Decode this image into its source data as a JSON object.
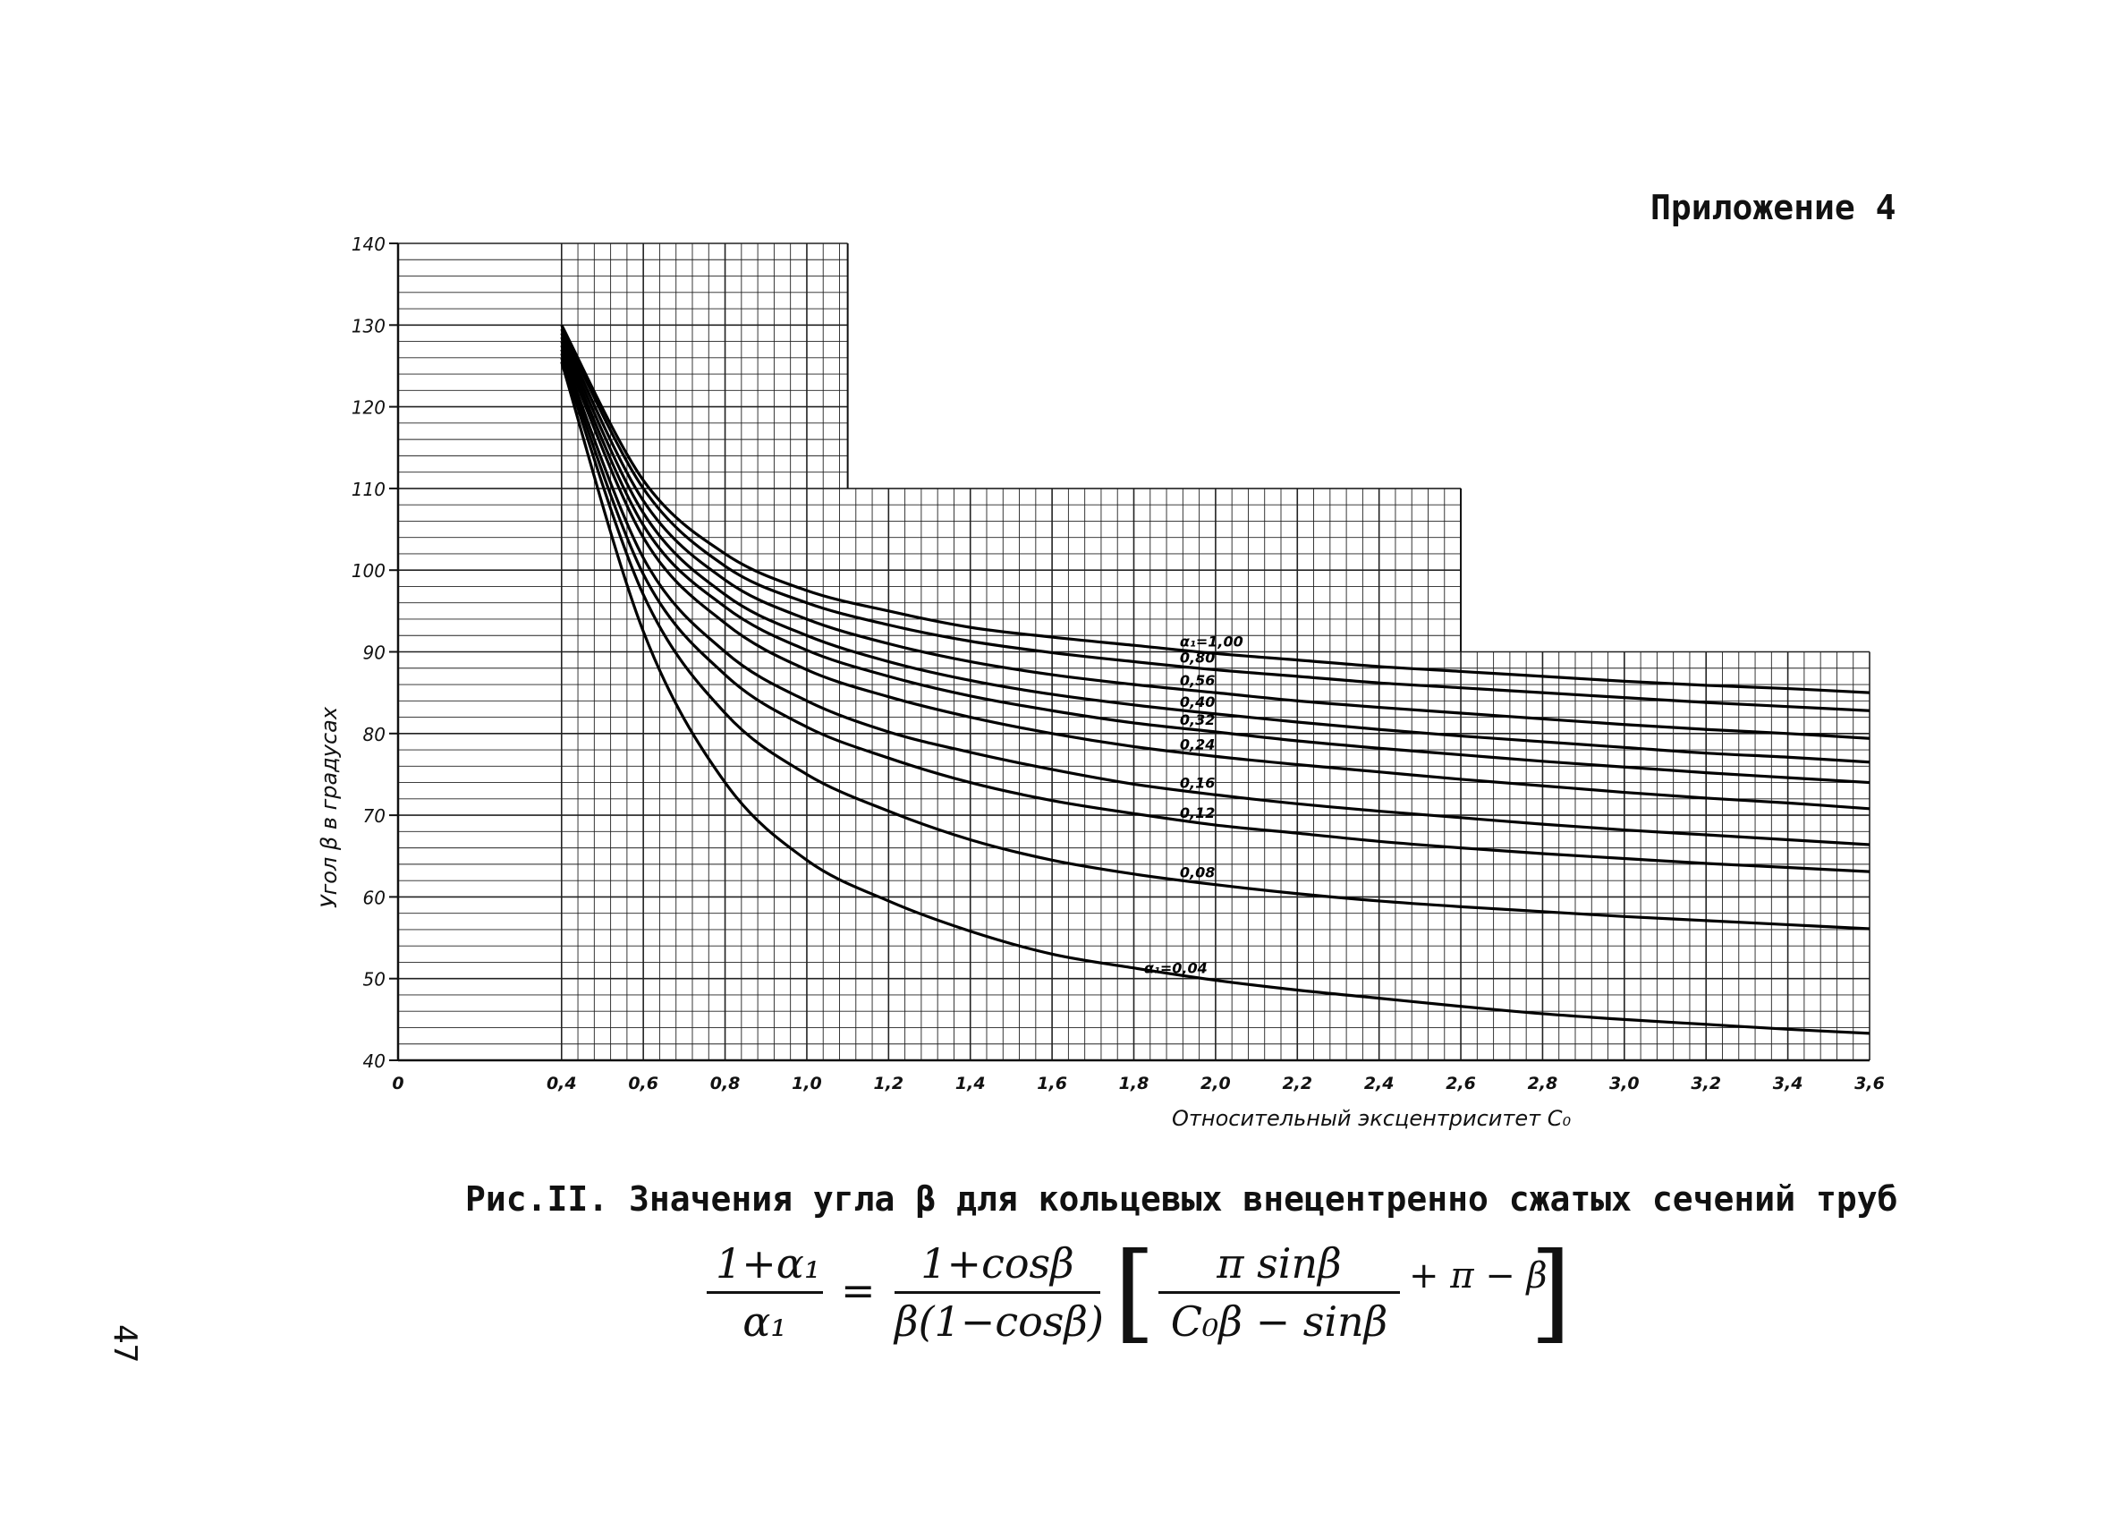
{
  "header": {
    "appendix": "Приложение 4"
  },
  "chart_data": {
    "type": "line",
    "title": "",
    "xlabel": "Относительный эксцентриситет C₀",
    "ylabel": "Угол β в градусах",
    "xlim": [
      0,
      3.6
    ],
    "ylim": [
      40,
      140
    ],
    "x_ticks": [
      0,
      0.4,
      0.6,
      0.8,
      1.0,
      1.2,
      1.4,
      1.6,
      1.8,
      2.0,
      2.2,
      2.4,
      2.6,
      2.8,
      3.0,
      3.2,
      3.4,
      3.6
    ],
    "x_tick_labels": [
      "0",
      "0,4",
      "0,6",
      "0,8",
      "1,0",
      "1,2",
      "1,4",
      "1,6",
      "1,8",
      "2,0",
      "2,2",
      "2,4",
      "2,6",
      "2,8",
      "3,0",
      "3,2",
      "3,4",
      "3,6"
    ],
    "y_ticks": [
      40,
      50,
      60,
      70,
      80,
      90,
      100,
      110,
      120,
      130,
      140
    ],
    "y_tick_labels": [
      "40",
      "50",
      "60",
      "70",
      "80",
      "90",
      "100",
      "110",
      "120",
      "130",
      "140"
    ],
    "grid": true,
    "x": [
      0.4,
      0.6,
      0.8,
      1.0,
      1.2,
      1.4,
      1.6,
      1.8,
      2.0,
      2.2,
      2.4,
      2.6,
      2.8,
      3.0,
      3.2,
      3.4,
      3.6
    ],
    "series": [
      {
        "name": "α₁=1,00",
        "values": [
          130,
          111.0,
          102.0,
          97.5,
          95.0,
          93.0,
          91.8,
          90.8,
          89.8,
          89.0,
          88.2,
          87.6,
          87.0,
          86.4,
          85.9,
          85.5,
          85.0
        ]
      },
      {
        "name": "0,80",
        "values": [
          129.5,
          110.0,
          100.5,
          96.0,
          93.3,
          91.3,
          89.9,
          88.8,
          87.8,
          87.0,
          86.2,
          85.6,
          85.0,
          84.4,
          83.8,
          83.3,
          82.8
        ]
      },
      {
        "name": "0,56",
        "values": [
          129.0,
          108.5,
          98.8,
          94.0,
          91.0,
          88.8,
          87.2,
          86.0,
          85.0,
          84.0,
          83.2,
          82.5,
          81.8,
          81.1,
          80.5,
          80.0,
          79.4
        ]
      },
      {
        "name": "0,40",
        "values": [
          128.5,
          107.0,
          97.0,
          92.0,
          88.8,
          86.5,
          84.8,
          83.5,
          82.4,
          81.4,
          80.5,
          79.7,
          79.0,
          78.3,
          77.6,
          77.1,
          76.5
        ]
      },
      {
        "name": "0,32",
        "values": [
          128.0,
          105.5,
          95.5,
          90.2,
          87.0,
          84.6,
          82.8,
          81.3,
          80.2,
          79.1,
          78.2,
          77.4,
          76.6,
          75.9,
          75.2,
          74.6,
          74.0
        ]
      },
      {
        "name": "0,24",
        "values": [
          127.5,
          104.0,
          93.5,
          87.8,
          84.5,
          82.0,
          80.0,
          78.4,
          77.2,
          76.2,
          75.3,
          74.4,
          73.6,
          72.8,
          72.1,
          71.5,
          70.8
        ]
      },
      {
        "name": "0,16",
        "values": [
          127.0,
          101.5,
          90.0,
          84.0,
          80.2,
          77.7,
          75.6,
          73.8,
          72.5,
          71.4,
          70.5,
          69.7,
          68.9,
          68.2,
          67.6,
          67.0,
          66.4
        ]
      },
      {
        "name": "0,12",
        "values": [
          126.5,
          99.5,
          87.2,
          80.8,
          77.0,
          74.0,
          71.8,
          70.2,
          68.8,
          67.8,
          66.8,
          66.0,
          65.3,
          64.7,
          64.1,
          63.6,
          63.1
        ]
      },
      {
        "name": "0,08",
        "values": [
          126.0,
          97.0,
          82.5,
          75.0,
          70.5,
          67.0,
          64.5,
          62.8,
          61.5,
          60.4,
          59.5,
          58.8,
          58.2,
          57.6,
          57.1,
          56.6,
          56.1
        ]
      },
      {
        "name": "α₁=0,04",
        "values": [
          125.5,
          92.5,
          74.0,
          64.5,
          59.5,
          55.8,
          53.0,
          51.3,
          49.8,
          48.6,
          47.6,
          46.6,
          45.7,
          45.0,
          44.4,
          43.8,
          43.3
        ]
      }
    ]
  },
  "caption": {
    "text": "Рис.II. Значения угла β для кольцевых внецентренно сжатых сечений труб"
  },
  "formula": {
    "lhs_num": "1+α₁",
    "lhs_den": "α₁",
    "eq": "=",
    "f1_num": "1+cosβ",
    "f1_den": "β(1−cosβ)",
    "bracket_open": "[",
    "f2_num": "π sinβ",
    "f2_den": "C₀β − sinβ",
    "tail": "+ π − β",
    "bracket_close": "]"
  },
  "page_number": "47"
}
